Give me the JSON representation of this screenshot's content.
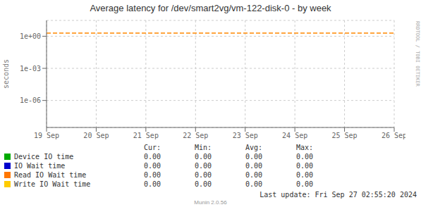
{
  "chart_data": {
    "type": "line",
    "title": "Average latency for /dev/smart2vg/vm-122-disk-0 - by week",
    "y_label": "seconds",
    "categories": [
      "19 Sep",
      "20 Sep",
      "21 Sep",
      "22 Sep",
      "23 Sep",
      "24 Sep",
      "25 Sep",
      "26 Sep"
    ],
    "series": [
      {
        "name": "Device IO time",
        "color": "#00aa00",
        "values": [
          null,
          null,
          null,
          null,
          null,
          null,
          null,
          null
        ],
        "stats": [
          {
            "value": 0,
            "label": "0.00"
          },
          {
            "value": 0,
            "label": "0.00"
          },
          {
            "value": 0,
            "label": "0.00"
          },
          {
            "value": 0,
            "label": "0.00"
          }
        ]
      },
      {
        "name": "IO Wait time",
        "color": "#0000cc",
        "values": [
          null,
          null,
          null,
          null,
          null,
          null,
          null,
          null
        ],
        "stats": [
          {
            "value": 0,
            "label": "0.00"
          },
          {
            "value": 0,
            "label": "0.00"
          },
          {
            "value": 0,
            "label": "0.00"
          },
          {
            "value": 0,
            "label": "0.00"
          }
        ]
      },
      {
        "name": "Read IO Wait time",
        "color": "#ff7700",
        "values": [
          null,
          null,
          null,
          null,
          null,
          null,
          null,
          null
        ],
        "stats": [
          {
            "value": 0,
            "label": "0.00"
          },
          {
            "value": 0,
            "label": "0.00"
          },
          {
            "value": 0,
            "label": "0.00"
          },
          {
            "value": 0,
            "label": "0.00"
          }
        ]
      },
      {
        "name": "Write IO Wait time",
        "color": "#ffcc00",
        "values": [
          null,
          null,
          null,
          null,
          null,
          null,
          null,
          null
        ],
        "stats": [
          {
            "value": 0,
            "label": "0.00"
          },
          {
            "value": 0,
            "label": "0.00"
          },
          {
            "value": 0,
            "label": "0.00"
          },
          {
            "value": 0,
            "label": "0.00"
          }
        ]
      }
    ],
    "stats_headers": [
      "Cur:",
      "Min:",
      "Avg:",
      "Max:"
    ],
    "log": "y",
    "ylim": [
      3e-09,
      30
    ],
    "yticks": [
      {
        "value": 1e-06,
        "label": "1e-06"
      },
      {
        "value": 0.001,
        "label": "1e-03"
      },
      {
        "value": 1,
        "label": "1e+00"
      }
    ],
    "grid": true,
    "reference_lines": [
      {
        "y": 2.0,
        "color": "#ff8800",
        "line_style": "dashed"
      }
    ],
    "annotations": [
      "Last update: Fri Sep 27 02:55:20 2024",
      "Munin 2.0.56",
      "RRDTOOL / TOBI OETIKER"
    ]
  }
}
